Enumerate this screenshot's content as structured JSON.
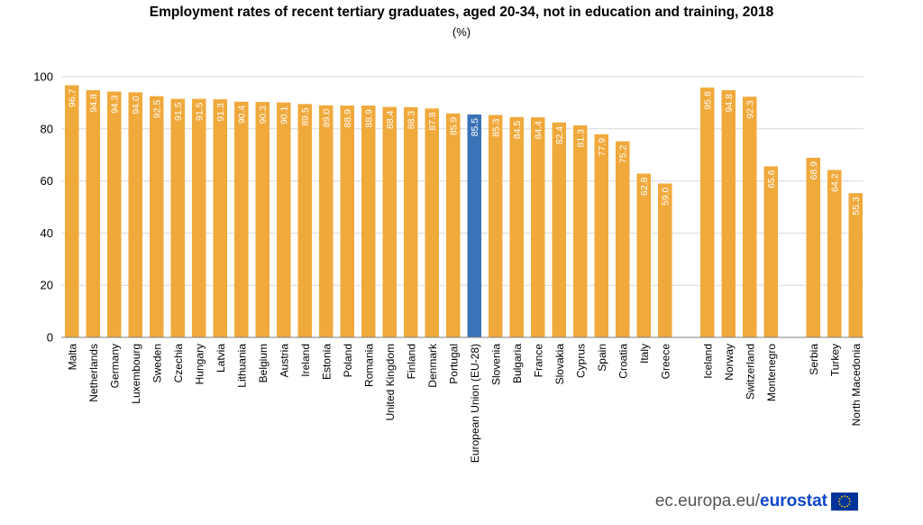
{
  "chart_data": {
    "type": "bar",
    "title": "Employment rates of recent tertiary graduates, aged 20-34, not in education and training, 2018",
    "subtitle": "(%)",
    "ylim": [
      0,
      100
    ],
    "yticks": [
      0,
      20,
      40,
      60,
      80,
      100
    ],
    "grid": true,
    "colors": {
      "default": "#f0a93b",
      "highlight": "#3b73b9",
      "grid": "#d9d9d9",
      "axis": "#7f7f7f"
    },
    "highlight": "European Union (EU-28)",
    "groups": [
      {
        "categories": [
          "Malta",
          "Netherlands",
          "Germany",
          "Luxembourg",
          "Sweden",
          "Czechia",
          "Hungary",
          "Latvia",
          "Lithuania",
          "Belgium",
          "Austria",
          "Ireland",
          "Estonia",
          "Poland",
          "Romania",
          "United Kingdom",
          "Finland",
          "Denmark",
          "Portugal",
          "European Union (EU-28)",
          "Slovenia",
          "Bulgaria",
          "France",
          "Slovakia",
          "Cyprus",
          "Spain",
          "Croatia",
          "Italy",
          "Greece"
        ],
        "values": [
          96.7,
          94.8,
          94.3,
          94.0,
          92.5,
          91.5,
          91.5,
          91.3,
          90.4,
          90.3,
          90.1,
          89.5,
          89.0,
          88.9,
          88.9,
          88.4,
          88.3,
          87.8,
          85.9,
          85.5,
          85.3,
          84.5,
          84.4,
          82.4,
          81.3,
          77.9,
          75.2,
          62.8,
          59.0
        ],
        "labels": [
          "96.7",
          "94.8",
          "94.3",
          "94.0",
          "92.5",
          "91.5",
          "91.5",
          "91.3",
          "90.4",
          "90.3",
          "90.1",
          "89.5",
          "89.0",
          "88.9",
          "88.9",
          "88.4",
          "88.3",
          "87.8",
          "85.9",
          "85.5",
          "85.3",
          "84.5",
          "84.4",
          "82.4",
          "81.3",
          "77.9",
          "75.2",
          "62.8",
          "59.0"
        ]
      },
      {
        "categories": [
          "Iceland",
          "Norway",
          "Switzerland",
          "Montenegro"
        ],
        "values": [
          95.8,
          94.8,
          92.3,
          65.6
        ],
        "labels": [
          "95.8",
          "94.8",
          "92.3",
          "65.6"
        ]
      },
      {
        "categories": [
          "Serbia",
          "Turkey",
          "North Macedonia"
        ],
        "values": [
          68.9,
          64.2,
          55.3
        ],
        "labels": [
          "68.9",
          "64.2",
          "55.3"
        ]
      }
    ]
  },
  "footer": {
    "site": "ec.europa.eu/",
    "brand": "eurostat"
  }
}
